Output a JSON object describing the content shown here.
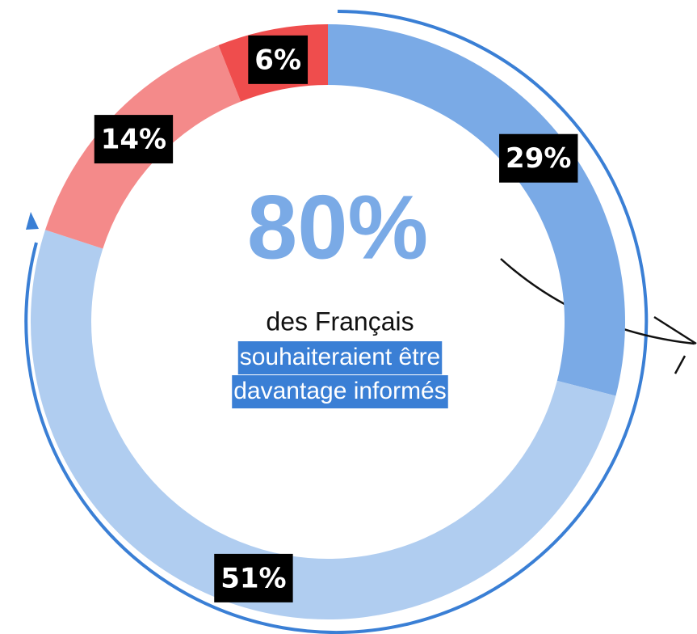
{
  "chart_data": {
    "type": "donut",
    "values": [
      29,
      51,
      14,
      6
    ],
    "value_labels": [
      "29%",
      "51%",
      "14%",
      "6%"
    ],
    "colors": [
      "#7aaae6",
      "#b0cdf0",
      "#f48a8a",
      "#ef4d4d"
    ],
    "center": {
      "headline": "80%",
      "text": "des Français",
      "highlight": [
        "souhaiteraient être",
        "davantage informés"
      ]
    }
  }
}
